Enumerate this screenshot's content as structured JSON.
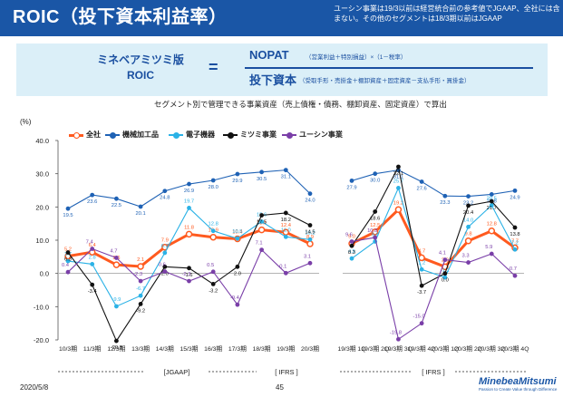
{
  "header": {
    "title": "ROIC（投下資本利益率）",
    "note": "ユーシン事業は19/3以前は経営統合前の参考値でJGAAP、全社には含まない。その他のセグメントは18/3期以前はJGAAP"
  },
  "formula": {
    "left_line1": "ミネベアミツミ版",
    "left_line2": "ROIC",
    "equals": "=",
    "numerator": "NOPAT",
    "numerator_sub": "（営業利益＋特別損益）×（1－税率）",
    "denominator": "投下資本",
    "denominator_sub": "（受取手形・売掛金＋棚卸資産＋固定資産－支払手形・買掛金）",
    "caption": "セグメント別で管理できる事業資産（売上債権・債務、棚卸資産、固定資産）で算出"
  },
  "footer": {
    "date": "2020/5/8",
    "page": "45"
  },
  "logo": {
    "name": "MinebeaMitsumi",
    "tagline": "Passion to Create Value through Difference"
  },
  "colors": {
    "header_bg": "#1a56a6",
    "formula_bg": "#dbeff8",
    "formula_text": "#1a4fa0"
  },
  "chart_data": {
    "type": "line",
    "ylabel": "(%)",
    "ylim": [
      -20.0,
      40.0
    ],
    "yticks": [
      "40.0",
      "30.0",
      "20.0",
      "10.0",
      "0.0",
      "-10.0",
      "-20.0"
    ],
    "grid": false,
    "legend_position": "top-left",
    "groups": [
      {
        "categories": [
          "10/3期",
          "11/3期",
          "12/3期",
          "13/3期",
          "14/3期",
          "15/3期",
          "16/3期",
          "17/3期",
          "18/3期",
          "19/3期",
          "20/3期"
        ],
        "section_labels": [
          "[JGAAP]",
          "[ IFRS ]"
        ],
        "series": [
          {
            "name": "全社",
            "color": "#ff5a1f",
            "values": [
              5.2,
              6.4,
              2.6,
              2.1,
              7.9,
              11.8,
              10.9,
              10.4,
              13.1,
              12.4,
              8.9
            ],
            "labels": [
              "5.2",
              "6.4",
              "2.6",
              "2.1",
              "7.9",
              "11.8",
              "10.9",
              "10.4",
              "13.1",
              "12.4",
              "8.9"
            ]
          },
          {
            "name": "機械加工品",
            "color": "#1f62b5",
            "values": [
              19.5,
              23.6,
              22.5,
              20.1,
              24.8,
              26.9,
              28.0,
              29.9,
              30.5,
              31.1,
              24.0
            ],
            "labels": [
              "19.5",
              "23.6",
              "22.5",
              "20.1",
              "24.8",
              "26.9",
              "28.0",
              "29.9",
              "30.5",
              "31.1",
              "24.0"
            ]
          },
          {
            "name": "電子機器",
            "color": "#2bb2e6",
            "values": [
              3.7,
              2.8,
              -9.9,
              -6.7,
              6.2,
              19.7,
              12.8,
              10.5,
              15.6,
              11.0,
              10.2
            ],
            "labels": [
              "3.7",
              "2.8",
              "-9.9",
              "-6.7",
              "6.2",
              "19.7",
              "12.8",
              "10.5",
              "15.6",
              "11.0",
              "10.2"
            ]
          },
          {
            "name": "ミツミ事業",
            "color": "#111111",
            "values": [
              6.3,
              -3.4,
              -20.3,
              -9.2,
              2.0,
              1.6,
              -3.2,
              2.0,
              17.5,
              18.2,
              14.5
            ],
            "labels": [
              "6.3",
              "-3.4",
              "-20.3",
              "-9.2",
              "2.0",
              "1.6",
              "-3.2",
              "2.0",
              "17.5",
              "18.2",
              "14.5"
            ]
          },
          {
            "name": "ユーシン事業",
            "color": "#7a3fa8",
            "values": [
              0.4,
              7.4,
              4.7,
              -2.3,
              0.6,
              -2.3,
              0.5,
              -9.4,
              7.1,
              0.1,
              3.1
            ],
            "labels": [
              "0.4",
              "7.4",
              "4.7",
              "-2.3",
              "0.6",
              "-2.3",
              "0.5",
              "-9.4",
              "7.1",
              "0.1",
              "3.1"
            ]
          }
        ]
      },
      {
        "categories": [
          "19/3期 1Q",
          "19/3期 2Q",
          "19/3期 3Q",
          "19/3期 4Q",
          "20/3期 1Q",
          "20/3期 2Q",
          "20/3期 3Q",
          "20/3期 4Q"
        ],
        "section_labels": [
          "[ IFRS ]"
        ],
        "series": [
          {
            "name": "全社",
            "color": "#ff5a1f",
            "values": [
              9.0,
              12.5,
              19.2,
              4.7,
              2.0,
              9.8,
              12.8,
              7.7
            ],
            "labels": [
              "9.0",
              "12.5",
              "19.2",
              "4.7",
              "2.0",
              "9.8",
              "12.8",
              "7.7"
            ]
          },
          {
            "name": "機械加工品",
            "color": "#1f62b5",
            "values": [
              27.9,
              30.0,
              31.1,
              27.6,
              23.3,
              23.2,
              23.8,
              24.9
            ],
            "labels": [
              "27.9",
              "30.0",
              "31.1",
              "27.6",
              "23.3",
              "23.2",
              "23.8",
              "24.9"
            ]
          },
          {
            "name": "電子機器",
            "color": "#2bb2e6",
            "values": [
              4.5,
              9.6,
              25.7,
              1.2,
              -1.2,
              14.0,
              20.5,
              7.2
            ],
            "labels": [
              "4.5",
              "9.6",
              "25.7",
              "1.2",
              "-1.2",
              "14.0",
              "20.5",
              "7.2"
            ]
          },
          {
            "name": "ミツミ事業",
            "color": "#111111",
            "values": [
              8.3,
              18.6,
              32.1,
              -3.7,
              0.0,
              20.4,
              21.7,
              13.8
            ],
            "labels": [
              "8.3",
              "18.6",
              "32.1",
              "-3.7",
              "0.0",
              "20.4",
              "21.7",
              "13.8"
            ]
          },
          {
            "name": "ユーシン事業",
            "color": "#7a3fa8",
            "values": [
              9.6,
              10.8,
              -19.8,
              -15.0,
              4.1,
              3.3,
              5.9,
              -0.7
            ],
            "labels": [
              "9.6",
              "10.8",
              "-19.8",
              "-15.0",
              "4.1",
              "3.3",
              "5.9",
              "-0.7"
            ]
          }
        ]
      }
    ]
  }
}
